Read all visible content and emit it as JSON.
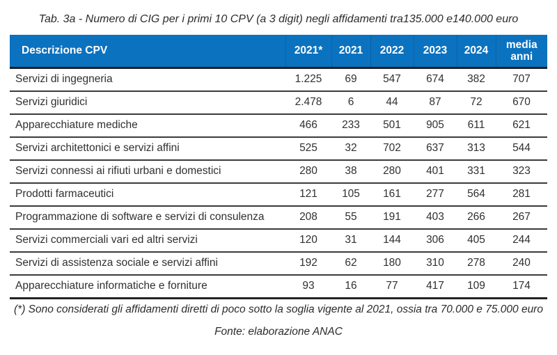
{
  "title": "Tab. 3a - Numero di CIG per i primi 10 CPV (a 3 digit) negli affidamenti tra135.000 e140.000 euro",
  "table": {
    "columns": [
      "Descrizione CPV",
      "2021*",
      "2021",
      "2022",
      "2023",
      "2024",
      "media anni"
    ],
    "rows": [
      {
        "label": "Servizi di ingegneria",
        "values": [
          "1.225",
          "69",
          "547",
          "674",
          "382",
          "707"
        ]
      },
      {
        "label": "Servizi giuridici",
        "values": [
          "2.478",
          "6",
          "44",
          "87",
          "72",
          "670"
        ]
      },
      {
        "label": "Apparecchiature mediche",
        "values": [
          "466",
          "233",
          "501",
          "905",
          "611",
          "621"
        ]
      },
      {
        "label": "Servizi architettonici e servizi affini",
        "values": [
          "525",
          "32",
          "702",
          "637",
          "313",
          "544"
        ]
      },
      {
        "label": "Servizi connessi ai rifiuti urbani e domestici",
        "values": [
          "280",
          "38",
          "280",
          "401",
          "331",
          "323"
        ]
      },
      {
        "label": "Prodotti farmaceutici",
        "values": [
          "121",
          "105",
          "161",
          "277",
          "564",
          "281"
        ]
      },
      {
        "label": "Programmazione di software e servizi di consulenza",
        "values": [
          "208",
          "55",
          "191",
          "403",
          "266",
          "267"
        ]
      },
      {
        "label": "Servizi commerciali vari ed altri servizi",
        "values": [
          "120",
          "31",
          "144",
          "306",
          "405",
          "244"
        ]
      },
      {
        "label": "Servizi di assistenza sociale e servizi affini",
        "values": [
          "192",
          "62",
          "180",
          "310",
          "278",
          "240"
        ]
      },
      {
        "label": "Apparecchiature informatiche e forniture",
        "values": [
          "93",
          "16",
          "77",
          "417",
          "109",
          "174"
        ]
      }
    ]
  },
  "footnote": "(*) Sono considerati gli affidamenti diretti di poco sotto la soglia vigente al 2021, ossia tra 70.000 e 75.000 euro",
  "source": "Fonte: elaborazione ANAC",
  "colors": {
    "header_bg": "#0b72c0",
    "header_text": "#ffffff",
    "header_divider": "#0a62a6",
    "body_text": "#303030",
    "rule": "#3a3a3a"
  }
}
